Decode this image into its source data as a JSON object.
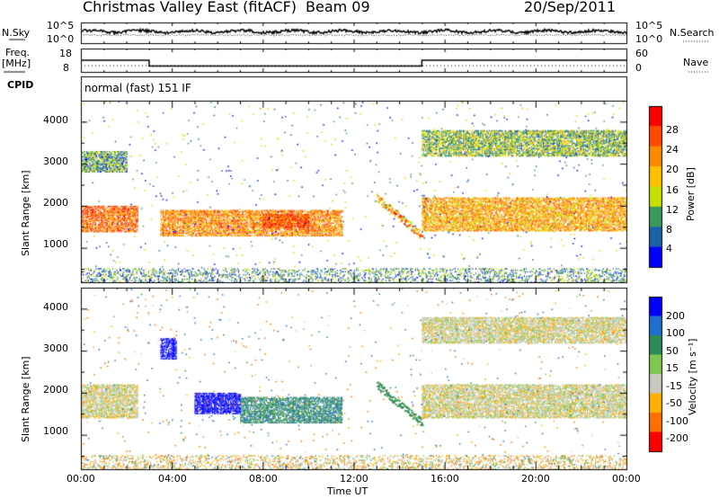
{
  "header": {
    "station": "Christmas Valley East (fitACF)",
    "beam": "Beam 09",
    "date": "20/Sep/2011"
  },
  "top_panels": {
    "nsky_label": "N.Sky",
    "nsky_ticks": [
      "10^5",
      "10^0"
    ],
    "nsearch_label": "N.Search",
    "nsearch_ticks": [
      "10^5",
      "10^0"
    ],
    "freq_label_1": "Freq.",
    "freq_label_2": "[MHz]",
    "freq_ticks": [
      "18",
      "8"
    ],
    "nave_label": "Nave",
    "nave_ticks": [
      "60",
      "0"
    ],
    "cpid_label": "CPID",
    "cpid_value": "normal (fast) 151 IF"
  },
  "x_axis": {
    "label": "Time UT",
    "ticks": [
      "00:00",
      "04:00",
      "08:00",
      "12:00",
      "16:00",
      "20:00",
      "00:00"
    ]
  },
  "power_panel": {
    "ylabel": "Slant Range [km]",
    "yticks": [
      "4000",
      "3000",
      "2000",
      "1000"
    ],
    "colorbar_label": "Power [dB]",
    "colorbar_ticks": [
      "28",
      "24",
      "20",
      "16",
      "12",
      "8",
      "4"
    ],
    "colors": [
      "#ff0000",
      "#ff4a00",
      "#ff8a00",
      "#ffc000",
      "#c8e000",
      "#3a9a5c",
      "#1c60a8",
      "#0000ff"
    ]
  },
  "velocity_panel": {
    "ylabel": "Slant Range [km]",
    "yticks": [
      "4000",
      "3000",
      "2000",
      "1000"
    ],
    "colorbar_label": "Velocity [m s⁻¹]",
    "colorbar_ticks": [
      "200",
      "100",
      "50",
      "15",
      "-15",
      "-50",
      "-100",
      "-200"
    ],
    "colors": [
      "#0000ff",
      "#1f6fd0",
      "#2e8b57",
      "#7ec850",
      "#c8c8c0",
      "#ffb000",
      "#ff7000",
      "#ff0000"
    ]
  },
  "chart_data": {
    "type": "heatmap",
    "title": "Christmas Valley East (fitACF) Beam 09 20/Sep/2011",
    "xlabel": "Time UT",
    "ylabel": "Slant Range [km]",
    "x_range_hours": [
      0,
      24
    ],
    "y_range_km": [
      180,
      4500
    ],
    "grid": false,
    "frequency_MHz": [
      {
        "from_hour": 0,
        "to_hour": 3,
        "value": 13
      },
      {
        "from_hour": 3,
        "to_hour": 15,
        "value": 10.5
      },
      {
        "from_hour": 15,
        "to_hour": 24,
        "value": 13
      }
    ],
    "power_bands_dB": [
      {
        "t0": 0,
        "t1": 2.5,
        "r0": 1400,
        "r1": 2000,
        "value": 24
      },
      {
        "t0": 0,
        "t1": 2,
        "r0": 2800,
        "r1": 3300,
        "value": 10
      },
      {
        "t0": 3.5,
        "t1": 11.5,
        "r0": 1300,
        "r1": 1900,
        "value": 22
      },
      {
        "t0": 8,
        "t1": 10,
        "r0": 1500,
        "r1": 1800,
        "value": 26
      },
      {
        "t0": 15,
        "t1": 24,
        "r0": 1400,
        "r1": 2200,
        "value": 20
      },
      {
        "t0": 15,
        "t1": 24,
        "r0": 3200,
        "r1": 3800,
        "value": 12
      }
    ],
    "velocity_bands_ms": [
      {
        "t0": 0,
        "t1": 2.5,
        "r0": 1400,
        "r1": 2200,
        "value": 0
      },
      {
        "t0": 3.5,
        "t1": 4.2,
        "r0": 2800,
        "r1": 3300,
        "value": 200
      },
      {
        "t0": 5,
        "t1": 7,
        "r0": 1500,
        "r1": 2000,
        "value": 200
      },
      {
        "t0": 7,
        "t1": 11.5,
        "r0": 1300,
        "r1": 1900,
        "value": 60
      },
      {
        "t0": 15,
        "t1": 24,
        "r0": 1400,
        "r1": 2200,
        "value": 0
      },
      {
        "t0": 15,
        "t1": 24,
        "r0": 3200,
        "r1": 3800,
        "value": 0
      }
    ]
  }
}
